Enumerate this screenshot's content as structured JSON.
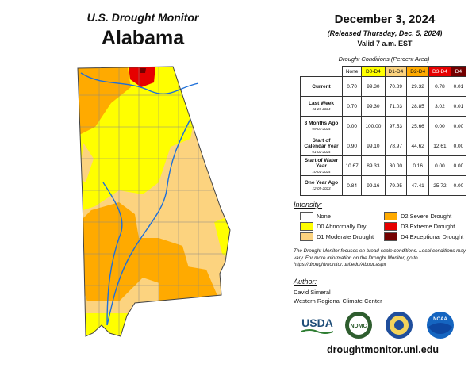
{
  "header": {
    "title": "U.S. Drought Monitor",
    "state": "Alabama",
    "date": "December 3, 2024",
    "released": "(Released Thursday, Dec. 5, 2024)",
    "valid": "Valid 7 a.m. EST"
  },
  "table": {
    "caption": "Drought Conditions (Percent Area)",
    "columns": [
      {
        "label": "None",
        "color": "#ffffff"
      },
      {
        "label": "D0-D4",
        "color": "#ffff00"
      },
      {
        "label": "D1-D4",
        "color": "#fcd37f"
      },
      {
        "label": "D2-D4",
        "color": "#ffaa00"
      },
      {
        "label": "D3-D4",
        "color": "#e60000"
      },
      {
        "label": "D4",
        "color": "#730000"
      }
    ],
    "rows": [
      {
        "label": "Current",
        "values": [
          "0.70",
          "99.30",
          "70.89",
          "29.32",
          "0.78",
          "0.01"
        ]
      },
      {
        "label": "Last Week",
        "date": "11-26-2024",
        "values": [
          "0.70",
          "99.30",
          "71.03",
          "28.85",
          "3.02",
          "0.01"
        ]
      },
      {
        "label": "3 Months Ago",
        "date": "09-03-2024",
        "values": [
          "0.00",
          "100.00",
          "97.53",
          "25.66",
          "0.00",
          "0.00"
        ]
      },
      {
        "label": "Start of Calendar Year",
        "date": "01-02-2024",
        "values": [
          "0.90",
          "99.10",
          "78.97",
          "44.62",
          "12.61",
          "0.00"
        ]
      },
      {
        "label": "Start of Water Year",
        "date": "10-01-2024",
        "values": [
          "10.67",
          "89.33",
          "30.00",
          "0.16",
          "0.00",
          "0.00"
        ]
      },
      {
        "label": "One Year Ago",
        "date": "12-05-2023",
        "values": [
          "0.84",
          "99.16",
          "79.95",
          "47.41",
          "25.72",
          "0.00"
        ]
      }
    ]
  },
  "legend": {
    "title": "Intensity:",
    "items": [
      {
        "label": "None",
        "color": "#ffffff"
      },
      {
        "label": "D0 Abnormally Dry",
        "color": "#ffff00"
      },
      {
        "label": "D1 Moderate Drought",
        "color": "#fcd37f"
      },
      {
        "label": "D2 Severe Drought",
        "color": "#ffaa00"
      },
      {
        "label": "D3 Extreme Drought",
        "color": "#e60000"
      },
      {
        "label": "D4 Exceptional Drought",
        "color": "#730000"
      }
    ]
  },
  "note": "The Drought Monitor focuses on broad-scale conditions. Local conditions may vary. For more information on the Drought Monitor, go to https://droughtmonitor.unl.edu/About.aspx",
  "author": {
    "title": "Author:",
    "lines": [
      "David Simeral",
      "Western Regional Climate Center"
    ]
  },
  "logos": [
    "USDA",
    "NDMC",
    "NOAA"
  ],
  "footer": "droughtmonitor.unl.edu"
}
